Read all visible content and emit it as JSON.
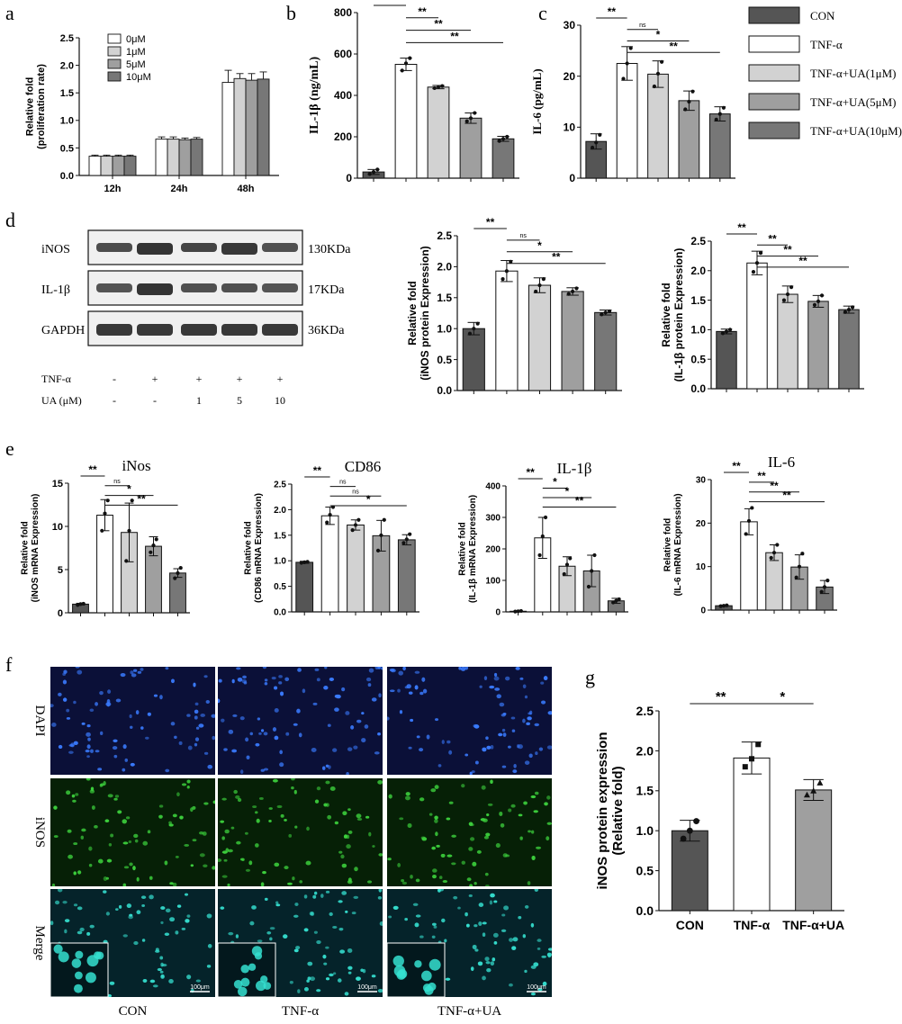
{
  "colors": {
    "con": "#555555",
    "tnf": "#ffffff",
    "ua1": "#d2d2d2",
    "ua5": "#9f9f9f",
    "ua10": "#777777",
    "axis": "#111111"
  },
  "legend": {
    "entries": [
      {
        "label": "CON",
        "color": "#555555"
      },
      {
        "label": "TNF-α",
        "color": "#ffffff"
      },
      {
        "label": "TNF-α+UA(1μM)",
        "color": "#d2d2d2"
      },
      {
        "label": "TNF-α+UA(5μM)",
        "color": "#9f9f9f"
      },
      {
        "label": "TNF-α+UA(10μM)",
        "color": "#777777"
      }
    ]
  },
  "western": {
    "bands": [
      {
        "label": "iNOS",
        "size": "130KDa",
        "intensity": [
          0.55,
          0.85,
          0.65,
          0.8,
          0.5
        ]
      },
      {
        "label": "IL-1β",
        "size": "17KDa",
        "intensity": [
          0.45,
          0.85,
          0.5,
          0.5,
          0.45
        ]
      },
      {
        "label": "GAPDH",
        "size": "36KDa",
        "intensity": [
          0.8,
          0.8,
          0.8,
          0.8,
          0.8
        ]
      }
    ],
    "rows": [
      {
        "label": "TNF-α",
        "values": [
          "-",
          "+",
          "+",
          "+",
          "+"
        ]
      },
      {
        "label": "UA (μM)",
        "values": [
          "-",
          "-",
          "1",
          "5",
          "10"
        ]
      }
    ]
  },
  "micro": {
    "rows": [
      "DAPI",
      "iNOS",
      "Merge"
    ],
    "columns": [
      "CON",
      "TNF-α",
      "TNF-α+UA"
    ],
    "scalebar": "100μm"
  },
  "chart_data": [
    {
      "panel": "a",
      "type": "bar",
      "title": "",
      "ylabel": "Relative fold (proliferation rate)",
      "categories": [
        "12h",
        "24h",
        "48h"
      ],
      "ylim": [
        0,
        2.5
      ],
      "yticks": [
        0,
        0.5,
        1.0,
        1.5,
        2.0,
        2.5
      ],
      "legend_position": "top-left",
      "series": [
        {
          "name": "0μM",
          "color": "#ffffff",
          "values": [
            0.35,
            0.66,
            1.69
          ],
          "errors": [
            0.02,
            0.04,
            0.22
          ]
        },
        {
          "name": "1μM",
          "color": "#d2d2d2",
          "values": [
            0.35,
            0.66,
            1.76
          ],
          "errors": [
            0.02,
            0.04,
            0.09
          ]
        },
        {
          "name": "5μM",
          "color": "#9f9f9f",
          "values": [
            0.35,
            0.65,
            1.73
          ],
          "errors": [
            0.02,
            0.03,
            0.12
          ]
        },
        {
          "name": "10μM",
          "color": "#777777",
          "values": [
            0.35,
            0.66,
            1.75
          ],
          "errors": [
            0.02,
            0.03,
            0.13
          ]
        }
      ]
    },
    {
      "panel": "b",
      "type": "bar",
      "title": "",
      "ylabel": "IL-1β (ng/mL)",
      "ylim": [
        0,
        800
      ],
      "yticks": [
        0,
        200,
        400,
        600,
        800
      ],
      "values": [
        30,
        550,
        440,
        290,
        190
      ],
      "errors": [
        12,
        30,
        8,
        25,
        12
      ],
      "points": [
        [
          20,
          30,
          42
        ],
        [
          520,
          555,
          580
        ],
        [
          435,
          440,
          445
        ],
        [
          275,
          290,
          315
        ],
        [
          180,
          190,
          200
        ]
      ],
      "signif": [
        {
          "from": 0,
          "to": 1,
          "label": "**"
        },
        {
          "from": 1,
          "to": 2,
          "label": "**"
        },
        {
          "from": 1,
          "to": 3,
          "label": "**"
        },
        {
          "from": 1,
          "to": 4,
          "label": "**"
        }
      ]
    },
    {
      "panel": "c",
      "type": "bar",
      "title": "",
      "ylabel": "IL-6 (pg/mL)",
      "ylim": [
        0,
        30
      ],
      "yticks": [
        0,
        10,
        20,
        30
      ],
      "values": [
        7.2,
        22.5,
        20.4,
        15.2,
        12.6
      ],
      "errors": [
        1.5,
        3.3,
        2.6,
        1.9,
        1.4
      ],
      "points": [
        [
          6,
          7,
          8.5
        ],
        [
          19.5,
          22.5,
          25.5
        ],
        [
          18,
          20.5,
          22.8
        ],
        [
          13.5,
          15,
          17
        ],
        [
          11.5,
          12.6,
          13.8
        ]
      ],
      "signif": [
        {
          "from": 0,
          "to": 1,
          "label": "**"
        },
        {
          "from": 1,
          "to": 2,
          "label": "ns"
        },
        {
          "from": 1,
          "to": 3,
          "label": "*"
        },
        {
          "from": 1,
          "to": 4,
          "label": "**"
        }
      ]
    },
    {
      "panel": "d1",
      "type": "bar",
      "title": "",
      "ylabel": "Relative fold (iNOS protein Expression)",
      "ylim": [
        0,
        2.5
      ],
      "yticks": [
        0.0,
        0.5,
        1.0,
        1.5,
        2.0,
        2.5
      ],
      "values": [
        1.0,
        1.93,
        1.7,
        1.6,
        1.26
      ],
      "errors": [
        0.1,
        0.17,
        0.12,
        0.06,
        0.04
      ],
      "points": [
        [
          0.92,
          1.0,
          1.08
        ],
        [
          1.8,
          1.93,
          2.08
        ],
        [
          1.6,
          1.7,
          1.8
        ],
        [
          1.56,
          1.6,
          1.65
        ],
        [
          1.23,
          1.26,
          1.28
        ]
      ],
      "signif": [
        {
          "from": 0,
          "to": 1,
          "label": "**"
        },
        {
          "from": 1,
          "to": 2,
          "label": "ns"
        },
        {
          "from": 1,
          "to": 3,
          "label": "*"
        },
        {
          "from": 1,
          "to": 4,
          "label": "**"
        }
      ]
    },
    {
      "panel": "d2",
      "type": "bar",
      "title": "",
      "ylabel": "Relative fold (IL-1β protein Expression)",
      "ylim": [
        0,
        2.5
      ],
      "yticks": [
        0.0,
        0.5,
        1.0,
        1.5,
        2.0,
        2.5
      ],
      "values": [
        0.97,
        2.13,
        1.6,
        1.48,
        1.34
      ],
      "errors": [
        0.04,
        0.2,
        0.14,
        0.1,
        0.06
      ],
      "points": [
        [
          0.94,
          0.97,
          1.0
        ],
        [
          1.98,
          2.13,
          2.3
        ],
        [
          1.5,
          1.6,
          1.72
        ],
        [
          1.42,
          1.48,
          1.58
        ],
        [
          1.3,
          1.34,
          1.38
        ]
      ],
      "signif": [
        {
          "from": 0,
          "to": 1,
          "label": "**"
        },
        {
          "from": 1,
          "to": 2,
          "label": "**"
        },
        {
          "from": 1,
          "to": 3,
          "label": "**"
        },
        {
          "from": 1,
          "to": 4,
          "label": "**"
        }
      ]
    },
    {
      "panel": "e1",
      "type": "bar",
      "title": "iNos",
      "ylabel": "Relative fold (iNOS mRNA Expression)",
      "ylim": [
        0,
        15
      ],
      "yticks": [
        0,
        5,
        10,
        15
      ],
      "values": [
        1.0,
        11.3,
        9.3,
        7.7,
        4.6
      ],
      "errors": [
        0.1,
        1.8,
        3.4,
        1.1,
        0.5
      ],
      "points": [
        [
          0.9,
          1.0,
          1.05
        ],
        [
          9.5,
          11.5,
          13.0
        ],
        [
          6.0,
          9.5,
          13.0
        ],
        [
          7.0,
          7.8,
          8.5
        ],
        [
          4.0,
          4.6,
          5.2
        ]
      ],
      "signif": [
        {
          "from": 0,
          "to": 1,
          "label": "**"
        },
        {
          "from": 1,
          "to": 2,
          "label": "ns"
        },
        {
          "from": 1,
          "to": 3,
          "label": "*"
        },
        {
          "from": 1,
          "to": 4,
          "label": "**"
        }
      ]
    },
    {
      "panel": "e2",
      "type": "bar",
      "title": "CD86",
      "ylabel": "Relative fold (CD86 mRNA Expression)",
      "ylim": [
        0,
        2.5
      ],
      "yticks": [
        0.0,
        0.5,
        1.0,
        1.5,
        2.0,
        2.5
      ],
      "values": [
        0.97,
        1.88,
        1.7,
        1.49,
        1.41
      ],
      "errors": [
        0.02,
        0.17,
        0.1,
        0.3,
        0.1
      ],
      "points": [
        [
          0.96,
          0.97,
          0.98
        ],
        [
          1.75,
          1.9,
          2.05
        ],
        [
          1.6,
          1.7,
          1.8
        ],
        [
          1.2,
          1.5,
          1.8
        ],
        [
          1.35,
          1.42,
          1.52
        ]
      ],
      "signif": [
        {
          "from": 0,
          "to": 1,
          "label": "**"
        },
        {
          "from": 1,
          "to": 2,
          "label": "ns"
        },
        {
          "from": 1,
          "to": 3,
          "label": "ns"
        },
        {
          "from": 1,
          "to": 4,
          "label": "*"
        }
      ]
    },
    {
      "panel": "e3",
      "type": "bar",
      "title": "IL-1β",
      "ylabel": "Relative fold (IL-1β mRNA Expression)",
      "ylim": [
        0,
        400
      ],
      "yticks": [
        0,
        100,
        200,
        300,
        400
      ],
      "values": [
        2,
        235,
        145,
        130,
        35
      ],
      "errors": [
        1,
        65,
        30,
        50,
        8
      ],
      "points": [
        [
          1,
          2,
          3
        ],
        [
          180,
          240,
          300
        ],
        [
          120,
          150,
          170
        ],
        [
          80,
          130,
          180
        ],
        [
          30,
          35,
          40
        ]
      ],
      "signif": [
        {
          "from": 0,
          "to": 1,
          "label": "**"
        },
        {
          "from": 1,
          "to": 2,
          "label": "*"
        },
        {
          "from": 1,
          "to": 3,
          "label": "*"
        },
        {
          "from": 1,
          "to": 4,
          "label": "**"
        }
      ]
    },
    {
      "panel": "e4",
      "type": "bar",
      "title": "IL-6",
      "ylabel": "Relative fold (IL-6 mRNA Expression)",
      "ylim": [
        0,
        30
      ],
      "yticks": [
        0,
        10,
        20,
        30
      ],
      "values": [
        1.0,
        20.3,
        13.2,
        9.9,
        5.3
      ],
      "errors": [
        0.1,
        3.0,
        1.8,
        2.8,
        1.5
      ],
      "points": [
        [
          0.9,
          1.0,
          1.1
        ],
        [
          17.5,
          20.5,
          23.5
        ],
        [
          12,
          13.2,
          15
        ],
        [
          7.5,
          10,
          13
        ],
        [
          4.2,
          5.3,
          6.8
        ]
      ],
      "signif": [
        {
          "from": 0,
          "to": 1,
          "label": "**"
        },
        {
          "from": 1,
          "to": 2,
          "label": "**"
        },
        {
          "from": 1,
          "to": 3,
          "label": "**"
        },
        {
          "from": 1,
          "to": 4,
          "label": "**"
        }
      ]
    },
    {
      "panel": "g",
      "type": "bar",
      "title": "",
      "ylabel": "iNOS protein expression (Relative fold)",
      "categories": [
        "CON",
        "TNF-α",
        "TNF-α+UA"
      ],
      "colors": [
        "#555555",
        "#ffffff",
        "#9f9f9f"
      ],
      "ylim": [
        0,
        2.5
      ],
      "yticks": [
        0.0,
        0.5,
        1.0,
        1.5,
        2.0,
        2.5
      ],
      "values": [
        1.0,
        1.91,
        1.51
      ],
      "errors": [
        0.13,
        0.2,
        0.13
      ],
      "points": [
        [
          0.9,
          1.0,
          1.12
        ],
        [
          1.8,
          1.9,
          2.08
        ],
        [
          1.45,
          1.5,
          1.6
        ]
      ],
      "signif": [
        {
          "from": 0,
          "to": 1,
          "label": "**"
        },
        {
          "from": 1,
          "to": 2,
          "label": "*"
        }
      ]
    }
  ]
}
